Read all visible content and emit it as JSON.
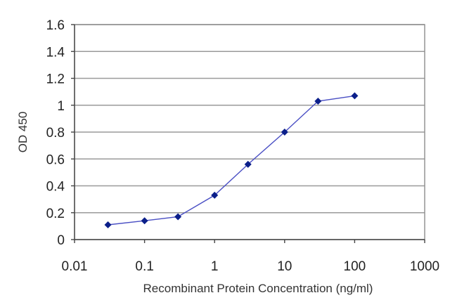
{
  "chart_data": {
    "type": "line",
    "xscale": "log",
    "xlim": [
      0.01,
      1000
    ],
    "ylim": [
      0,
      1.6
    ],
    "xticks": [
      0.01,
      0.1,
      1,
      10,
      100,
      1000
    ],
    "xtick_labels": [
      "0.01",
      "0.1",
      "1",
      "10",
      "100",
      "1000"
    ],
    "yticks": [
      0,
      0.2,
      0.4,
      0.6,
      0.8,
      1,
      1.2,
      1.4,
      1.6
    ],
    "ytick_labels": [
      "0",
      "0.2",
      "0.4",
      "0.6",
      "0.8",
      "1",
      "1.2",
      "1.4",
      "1.6"
    ],
    "grid": "horizontal",
    "title": "",
    "xlabel": "Recombinant Protein Concentration (ng/ml)",
    "ylabel": "OD 450",
    "series": [
      {
        "x": [
          0.03,
          0.1,
          0.3,
          1,
          3,
          10,
          30,
          100
        ],
        "y": [
          0.11,
          0.14,
          0.17,
          0.33,
          0.56,
          0.8,
          1.03,
          1.07
        ],
        "line_color": "#4a4fc4",
        "marker_color": "#0b1f8a",
        "marker": "diamond"
      }
    ]
  }
}
